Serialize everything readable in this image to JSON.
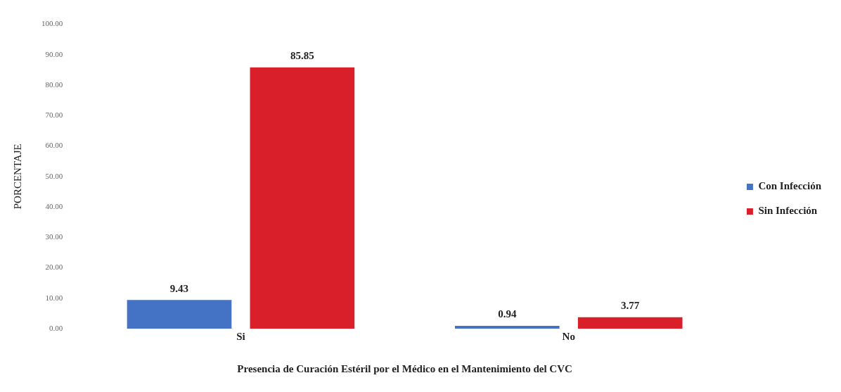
{
  "chart_data": {
    "type": "bar",
    "xlabel": "Presencia de Curación Estéril por el Médico en el Mantenimiento del CVC",
    "ylabel": "PORCENTAJE",
    "categories": [
      "Si",
      "No"
    ],
    "series": [
      {
        "name": "Con Infección",
        "color": "#4472c4",
        "values": [
          9.43,
          0.94
        ]
      },
      {
        "name": "Sin Infección",
        "color": "#d9202a",
        "values": [
          85.85,
          3.77
        ]
      }
    ],
    "ylim": [
      0,
      100
    ],
    "yticks": [
      {
        "value": 0,
        "label": "0.00"
      },
      {
        "value": 10,
        "label": "10.00"
      },
      {
        "value": 20,
        "label": "20.00"
      },
      {
        "value": 30,
        "label": "30.00"
      },
      {
        "value": 40,
        "label": "40.00"
      },
      {
        "value": 50,
        "label": "50.00"
      },
      {
        "value": 60,
        "label": "60.00"
      },
      {
        "value": 70,
        "label": "70.00"
      },
      {
        "value": 80,
        "label": "80.00"
      },
      {
        "value": 90,
        "label": "90.00"
      },
      {
        "value": 100,
        "label": "100.00"
      }
    ],
    "data_labels": true,
    "grid": false,
    "legend": "right"
  }
}
